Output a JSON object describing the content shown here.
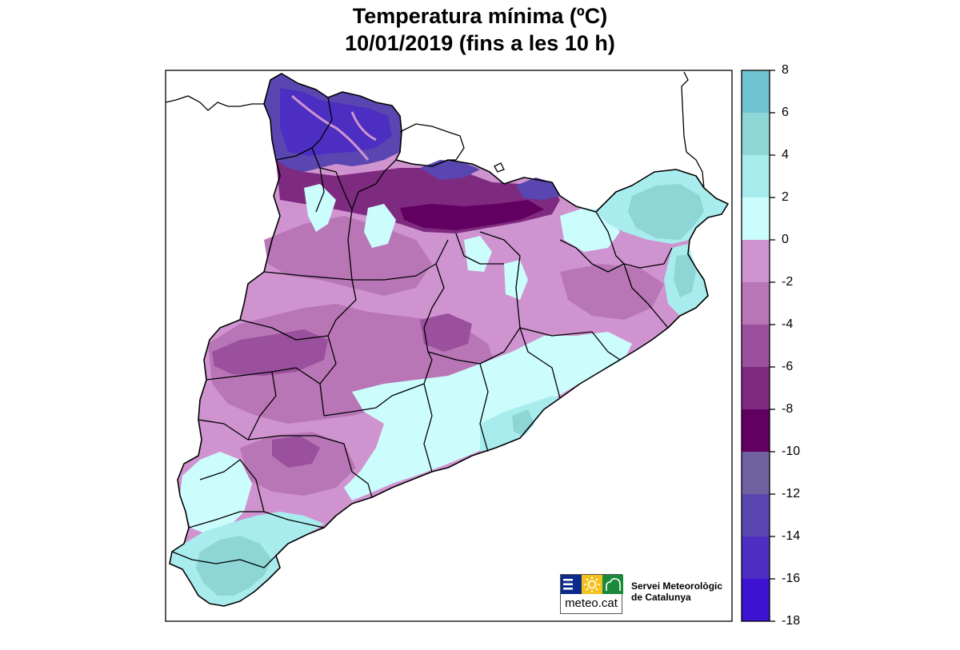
{
  "title": {
    "line1": "Temperatura mínima (ºC)",
    "line2": "10/01/2019 (fins a les 10 h)"
  },
  "legend": {
    "ticks": [
      "8",
      "6",
      "4",
      "2",
      "0",
      "-2",
      "-4",
      "-6",
      "-8",
      "-10",
      "-12",
      "-14",
      "-16",
      "-18"
    ],
    "bins": [
      {
        "from": 6,
        "to": 8,
        "color": "#6fc2cf"
      },
      {
        "from": 4,
        "to": 6,
        "color": "#8ed6d6"
      },
      {
        "from": 2,
        "to": 4,
        "color": "#a9ecee"
      },
      {
        "from": 0,
        "to": 2,
        "color": "#ccfdfd"
      },
      {
        "from": -2,
        "to": 0,
        "color": "#cf94cf"
      },
      {
        "from": -4,
        "to": -2,
        "color": "#b876b7"
      },
      {
        "from": -6,
        "to": -4,
        "color": "#9a509c"
      },
      {
        "from": -8,
        "to": -6,
        "color": "#7e2a80"
      },
      {
        "from": -10,
        "to": -8,
        "color": "#620061"
      },
      {
        "from": -12,
        "to": -10,
        "color": "#6f619f"
      },
      {
        "from": -14,
        "to": -12,
        "color": "#5a46b0"
      },
      {
        "from": -16,
        "to": -14,
        "color": "#4c2fc2"
      },
      {
        "from": -18,
        "to": -16,
        "color": "#3e12d2"
      }
    ]
  },
  "logo": {
    "text": "meteo.cat",
    "colors": {
      "left": "#0c2a8c",
      "middle": "#f4c21c",
      "right": "#1a8a3a"
    }
  },
  "organization": {
    "line1": "Servei Meteorològic",
    "line2": "de Catalunya"
  }
}
